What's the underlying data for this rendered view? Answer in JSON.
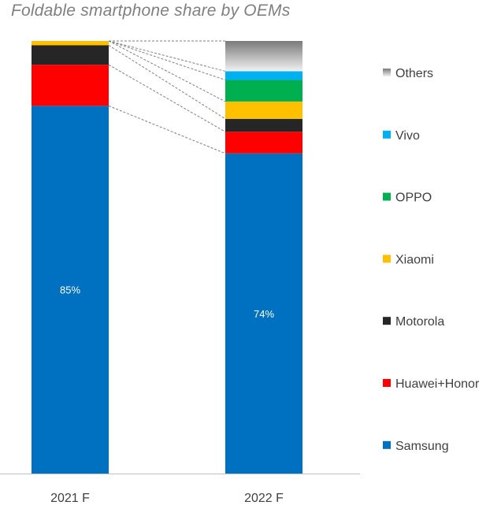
{
  "chart_data": {
    "type": "bar",
    "stacked": true,
    "normalized_percent": true,
    "title": "Foldable smartphone share by OEMs",
    "xlabel": "",
    "ylabel": "",
    "ylim": [
      0,
      100
    ],
    "grid": false,
    "legend_position": "right",
    "categories": [
      "2021 F",
      "2022 F"
    ],
    "series": [
      {
        "name": "Samsung",
        "color": "#0070c0",
        "values": [
          85,
          74
        ]
      },
      {
        "name": "Huawei+Honor",
        "color": "#ff0000",
        "values": [
          9.5,
          5
        ]
      },
      {
        "name": "Motorola",
        "color": "#262626",
        "values": [
          4.5,
          3
        ]
      },
      {
        "name": "Xiaomi",
        "color": "#ffc000",
        "values": [
          1,
          4
        ]
      },
      {
        "name": "OPPO",
        "color": "#00b050",
        "values": [
          0,
          5
        ]
      },
      {
        "name": "Vivo",
        "color": "#00b0f0",
        "values": [
          0,
          2
        ]
      },
      {
        "name": "Others",
        "color": "#bfbfbf",
        "values": [
          0,
          7
        ]
      }
    ],
    "data_labels": [
      {
        "series": "Samsung",
        "category": "2021 F",
        "text": "85%"
      },
      {
        "series": "Samsung",
        "category": "2022 F",
        "text": "74%"
      }
    ],
    "legend_order": [
      "Others",
      "Vivo",
      "OPPO",
      "Xiaomi",
      "Motorola",
      "Huawei+Honor",
      "Samsung"
    ]
  }
}
